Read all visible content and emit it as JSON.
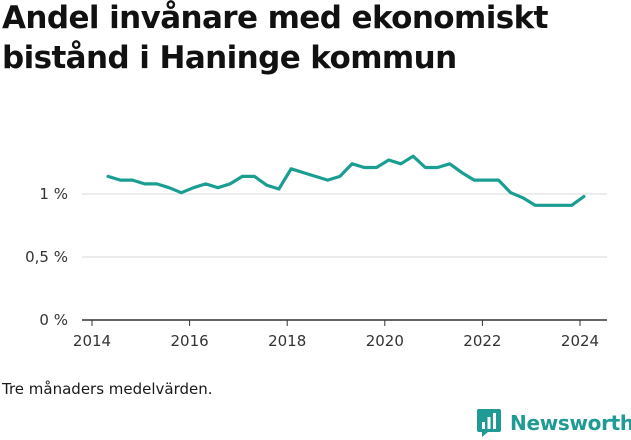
{
  "title": "Andel invånare med ekonomiskt bistånd i Haninge kommun",
  "note": "Tre månaders medelvärden.",
  "brand": {
    "name": "Newsworthy",
    "icon": "bar-chart-logo-icon",
    "color": "#1f9a95"
  },
  "colors": {
    "line": "#1a9e92",
    "grid": "#d9d9d9",
    "axis": "#333333"
  },
  "chart_data": {
    "type": "line",
    "title": "Andel invånare med ekonomiskt bistånd i Haninge kommun",
    "xlabel": "",
    "ylabel": "",
    "xlim": [
      2013.95,
      2024.5
    ],
    "ylim": [
      0,
      1.2
    ],
    "x_ticks": [
      2014,
      2016,
      2018,
      2020,
      2022,
      2024
    ],
    "x_tick_labels": [
      "2014",
      "2016",
      "2018",
      "2020",
      "2022",
      "2024"
    ],
    "y_ticks": [
      0,
      0.5,
      1
    ],
    "y_tick_labels": [
      "0 %",
      "0,5 %",
      "1 %"
    ],
    "grid": true,
    "series": [
      {
        "name": "Andel invånare med ekonomiskt bistånd",
        "x": [
          2014.33,
          2014.58,
          2014.83,
          2015.08,
          2015.33,
          2015.58,
          2015.83,
          2016.08,
          2016.33,
          2016.58,
          2016.83,
          2017.08,
          2017.33,
          2017.58,
          2017.83,
          2018.08,
          2018.33,
          2018.58,
          2018.83,
          2019.08,
          2019.33,
          2019.58,
          2019.83,
          2020.08,
          2020.33,
          2020.58,
          2020.83,
          2021.08,
          2021.33,
          2021.58,
          2021.83,
          2022.08,
          2022.33,
          2022.58,
          2022.83,
          2023.08,
          2023.33,
          2023.58,
          2023.83,
          2024.08
        ],
        "values": [
          1.14,
          1.11,
          1.11,
          1.08,
          1.08,
          1.05,
          1.01,
          1.05,
          1.08,
          1.05,
          1.08,
          1.14,
          1.14,
          1.07,
          1.04,
          1.2,
          1.17,
          1.14,
          1.11,
          1.14,
          1.24,
          1.21,
          1.21,
          1.27,
          1.24,
          1.3,
          1.21,
          1.21,
          1.24,
          1.17,
          1.11,
          1.11,
          1.11,
          1.01,
          0.97,
          0.91,
          0.91,
          0.91,
          0.91,
          0.98
        ]
      }
    ]
  }
}
